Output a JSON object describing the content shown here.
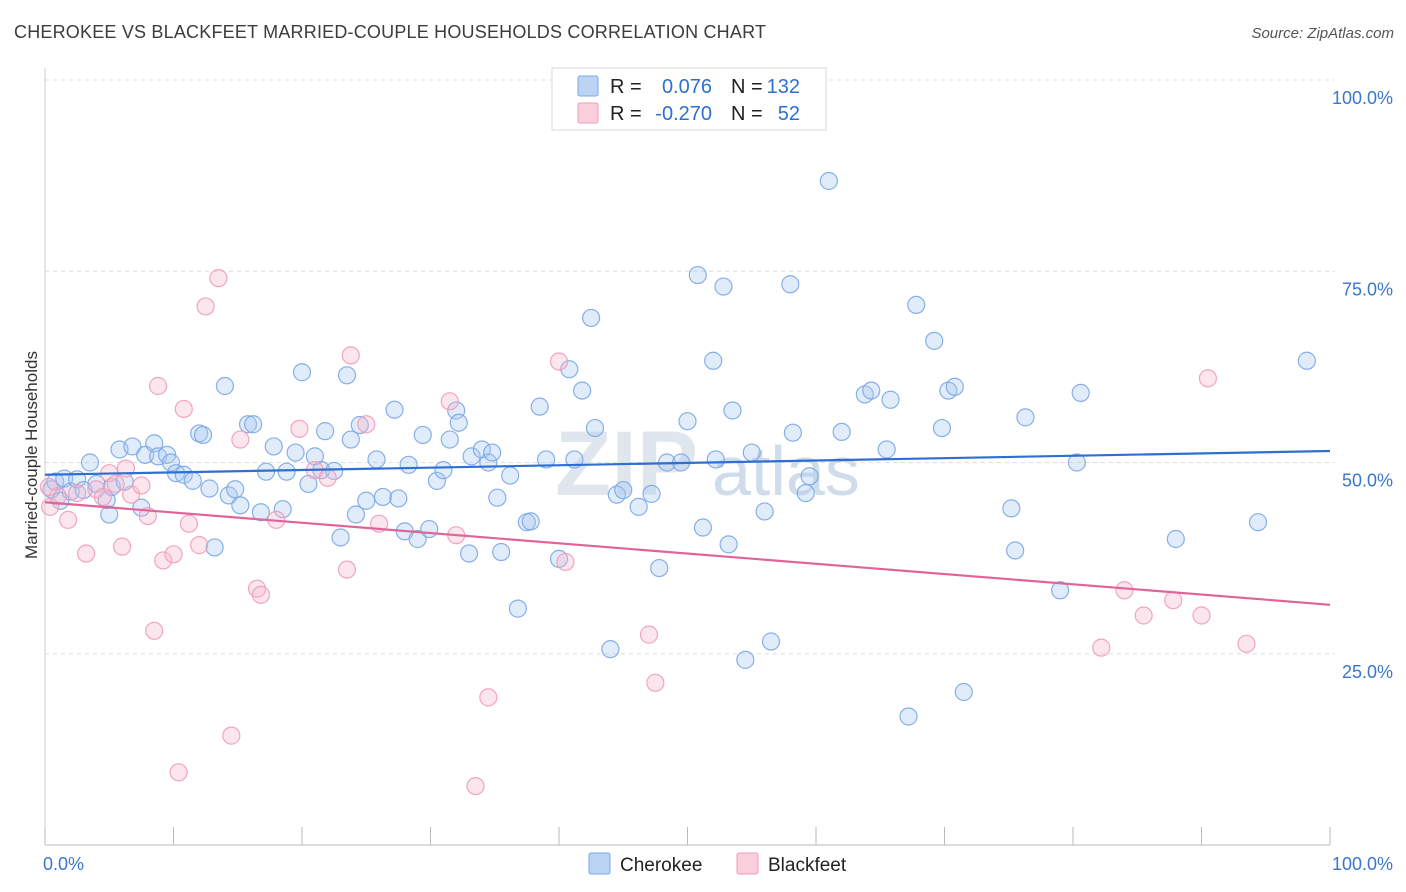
{
  "header": {
    "title": "CHEROKEE VS BLACKFEET MARRIED-COUPLE HOUSEHOLDS CORRELATION CHART",
    "source": "Source: ZipAtlas.com"
  },
  "watermark": {
    "part1": "ZIP",
    "part2": "atlas"
  },
  "legend": {
    "rows": [
      {
        "r_label": "R =",
        "r_value": "0.076",
        "n_label": "N =",
        "n_value": "132",
        "color": "#a9c8f0"
      },
      {
        "r_label": "R =",
        "r_value": "-0.270",
        "n_label": "N =",
        "n_value": "52",
        "color": "#f6b8cb"
      }
    ]
  },
  "bottom_legend": {
    "cherokee": "Cherokee",
    "blackfeet": "Blackfeet"
  },
  "chart_data": {
    "type": "scatter",
    "ylabel": "Married-couple Households",
    "xlim": [
      0,
      100
    ],
    "ylim": [
      0,
      100
    ],
    "x_tick_labels": {
      "min": "0.0%",
      "max": "100.0%"
    },
    "y_ticks": [
      {
        "value": 25,
        "label": "25.0%"
      },
      {
        "value": 50,
        "label": "50.0%"
      },
      {
        "value": 75,
        "label": "75.0%"
      },
      {
        "value": 100,
        "label": "100.0%"
      }
    ],
    "grid": true,
    "colors": {
      "cherokee": "#7aa7e6",
      "cherokee_line": "#2e6fd1",
      "blackfeet": "#f29bb6",
      "blackfeet_line": "#e0649a"
    },
    "series": [
      {
        "name": "Cherokee",
        "trend": {
          "y_at_x0": 48.4,
          "y_at_x100": 51.5
        },
        "points": [
          [
            0.5,
            46.5
          ],
          [
            0.8,
            47.5
          ],
          [
            1.2,
            45.0
          ],
          [
            1.5,
            47.9
          ],
          [
            2.0,
            46.2
          ],
          [
            2.5,
            47.8
          ],
          [
            3.0,
            46.4
          ],
          [
            3.5,
            50.0
          ],
          [
            4.0,
            47.2
          ],
          [
            4.8,
            45.1
          ],
          [
            5.0,
            43.2
          ],
          [
            5.2,
            46.8
          ],
          [
            5.8,
            51.7
          ],
          [
            6.2,
            47.5
          ],
          [
            6.8,
            52.1
          ],
          [
            7.5,
            44.1
          ],
          [
            7.8,
            51.0
          ],
          [
            8.5,
            52.5
          ],
          [
            8.8,
            50.8
          ],
          [
            9.5,
            51.0
          ],
          [
            9.8,
            50.0
          ],
          [
            10.2,
            48.6
          ],
          [
            10.8,
            48.4
          ],
          [
            11.5,
            47.6
          ],
          [
            12.0,
            53.8
          ],
          [
            12.3,
            53.6
          ],
          [
            12.8,
            46.6
          ],
          [
            13.2,
            38.9
          ],
          [
            14.0,
            60.0
          ],
          [
            14.3,
            45.7
          ],
          [
            14.8,
            46.5
          ],
          [
            15.2,
            44.4
          ],
          [
            15.8,
            55.0
          ],
          [
            16.2,
            55.0
          ],
          [
            16.8,
            43.5
          ],
          [
            17.2,
            48.8
          ],
          [
            17.8,
            52.1
          ],
          [
            18.5,
            43.9
          ],
          [
            18.8,
            48.8
          ],
          [
            19.5,
            51.3
          ],
          [
            20.0,
            61.8
          ],
          [
            20.5,
            47.2
          ],
          [
            21.0,
            50.8
          ],
          [
            21.5,
            49.0
          ],
          [
            21.8,
            54.1
          ],
          [
            22.5,
            48.9
          ],
          [
            23.0,
            40.2
          ],
          [
            23.5,
            61.4
          ],
          [
            23.8,
            53.0
          ],
          [
            24.2,
            43.2
          ],
          [
            24.5,
            54.9
          ],
          [
            25.0,
            45.0
          ],
          [
            25.8,
            50.4
          ],
          [
            26.3,
            45.5
          ],
          [
            27.2,
            56.9
          ],
          [
            27.5,
            45.3
          ],
          [
            28.0,
            41.0
          ],
          [
            28.3,
            49.7
          ],
          [
            29.0,
            40.0
          ],
          [
            29.4,
            53.6
          ],
          [
            29.9,
            41.3
          ],
          [
            30.5,
            47.6
          ],
          [
            31.0,
            49.0
          ],
          [
            31.5,
            53.0
          ],
          [
            32.0,
            56.8
          ],
          [
            32.2,
            55.2
          ],
          [
            33.0,
            38.1
          ],
          [
            33.2,
            50.8
          ],
          [
            34.0,
            51.7
          ],
          [
            34.5,
            50.0
          ],
          [
            34.8,
            51.3
          ],
          [
            35.2,
            45.4
          ],
          [
            35.5,
            38.3
          ],
          [
            36.2,
            48.3
          ],
          [
            36.8,
            30.9
          ],
          [
            37.5,
            42.2
          ],
          [
            37.8,
            42.3
          ],
          [
            38.5,
            57.3
          ],
          [
            39.0,
            50.4
          ],
          [
            40.0,
            37.4
          ],
          [
            40.8,
            62.2
          ],
          [
            41.2,
            50.4
          ],
          [
            41.8,
            59.4
          ],
          [
            42.8,
            54.5
          ],
          [
            44.0,
            25.6
          ],
          [
            42.5,
            68.9
          ],
          [
            44.5,
            45.8
          ],
          [
            45.0,
            46.4
          ],
          [
            46.2,
            44.2
          ],
          [
            47.2,
            45.9
          ],
          [
            47.8,
            36.2
          ],
          [
            48.4,
            50.0
          ],
          [
            49.5,
            50.0
          ],
          [
            50.0,
            55.4
          ],
          [
            50.8,
            74.5
          ],
          [
            51.2,
            41.5
          ],
          [
            52.0,
            63.3
          ],
          [
            52.2,
            50.4
          ],
          [
            52.8,
            73.0
          ],
          [
            53.2,
            39.3
          ],
          [
            53.5,
            56.8
          ],
          [
            54.5,
            24.2
          ],
          [
            55.0,
            51.3
          ],
          [
            56.0,
            43.6
          ],
          [
            56.5,
            26.6
          ],
          [
            58.0,
            73.3
          ],
          [
            58.2,
            53.9
          ],
          [
            59.2,
            46.0
          ],
          [
            59.5,
            48.2
          ],
          [
            61.0,
            86.8
          ],
          [
            62.0,
            54.0
          ],
          [
            63.8,
            58.9
          ],
          [
            64.3,
            59.4
          ],
          [
            65.5,
            51.7
          ],
          [
            65.8,
            58.2
          ],
          [
            67.2,
            16.8
          ],
          [
            67.8,
            70.6
          ],
          [
            69.2,
            65.9
          ],
          [
            69.8,
            54.5
          ],
          [
            70.3,
            59.4
          ],
          [
            70.8,
            59.9
          ],
          [
            71.5,
            20.0
          ],
          [
            75.2,
            44.0
          ],
          [
            75.5,
            38.5
          ],
          [
            76.3,
            55.9
          ],
          [
            79.0,
            33.3
          ],
          [
            80.3,
            50.0
          ],
          [
            80.6,
            59.1
          ],
          [
            88.0,
            40.0
          ],
          [
            94.4,
            42.2
          ],
          [
            98.2,
            63.3
          ]
        ]
      },
      {
        "name": "Blackfeet",
        "trend": {
          "y_at_x0": 44.8,
          "y_at_x100": 31.4
        },
        "points": [
          [
            0.4,
            44.2
          ],
          [
            1.0,
            45.6
          ],
          [
            1.8,
            42.5
          ],
          [
            2.5,
            46.0
          ],
          [
            3.2,
            38.1
          ],
          [
            4.0,
            46.5
          ],
          [
            4.5,
            45.5
          ],
          [
            5.0,
            48.6
          ],
          [
            5.5,
            47.2
          ],
          [
            6.0,
            39.0
          ],
          [
            6.3,
            49.2
          ],
          [
            6.7,
            45.8
          ],
          [
            7.5,
            47.0
          ],
          [
            8.0,
            43.0
          ],
          [
            8.5,
            28.0
          ],
          [
            8.8,
            60.0
          ],
          [
            9.2,
            37.2
          ],
          [
            10.0,
            38.0
          ],
          [
            10.4,
            9.5
          ],
          [
            10.8,
            57.0
          ],
          [
            11.2,
            42.0
          ],
          [
            12.0,
            39.2
          ],
          [
            12.5,
            70.4
          ],
          [
            13.5,
            74.1
          ],
          [
            14.5,
            14.3
          ],
          [
            15.2,
            53.0
          ],
          [
            16.5,
            33.5
          ],
          [
            16.8,
            32.7
          ],
          [
            18.0,
            42.5
          ],
          [
            19.8,
            54.4
          ],
          [
            21.0,
            49.0
          ],
          [
            22.0,
            48.0
          ],
          [
            23.5,
            36.0
          ],
          [
            23.8,
            64.0
          ],
          [
            25.0,
            55.0
          ],
          [
            26.0,
            42.0
          ],
          [
            31.5,
            58.0
          ],
          [
            32.0,
            40.5
          ],
          [
            33.5,
            7.7
          ],
          [
            34.5,
            19.3
          ],
          [
            40.0,
            63.2
          ],
          [
            40.5,
            37.0
          ],
          [
            47.0,
            27.5
          ],
          [
            47.5,
            21.2
          ],
          [
            82.2,
            25.8
          ],
          [
            84.0,
            33.3
          ],
          [
            85.5,
            30.0
          ],
          [
            87.8,
            32.0
          ],
          [
            90.0,
            30.0
          ],
          [
            90.5,
            61.0
          ],
          [
            93.5,
            26.3
          ],
          [
            0.3,
            46.8
          ]
        ]
      }
    ]
  }
}
